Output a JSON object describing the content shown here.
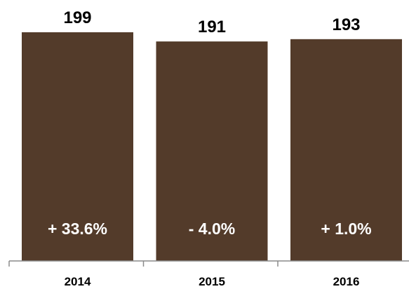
{
  "chart_data": {
    "type": "bar",
    "categories": [
      "2014",
      "2015",
      "2016"
    ],
    "values": [
      199,
      191,
      193
    ],
    "change_labels": [
      "+ 33.6%",
      "- 4.0%",
      "+ 1.0%"
    ],
    "title": "",
    "xlabel": "",
    "ylabel": "",
    "ylim": [
      0,
      199
    ],
    "grid": false,
    "legend": "none"
  },
  "colors": {
    "bar": "#533b2a",
    "axis": "#8a8a8a",
    "value_text": "#000000",
    "inner_text": "#ffffff"
  }
}
